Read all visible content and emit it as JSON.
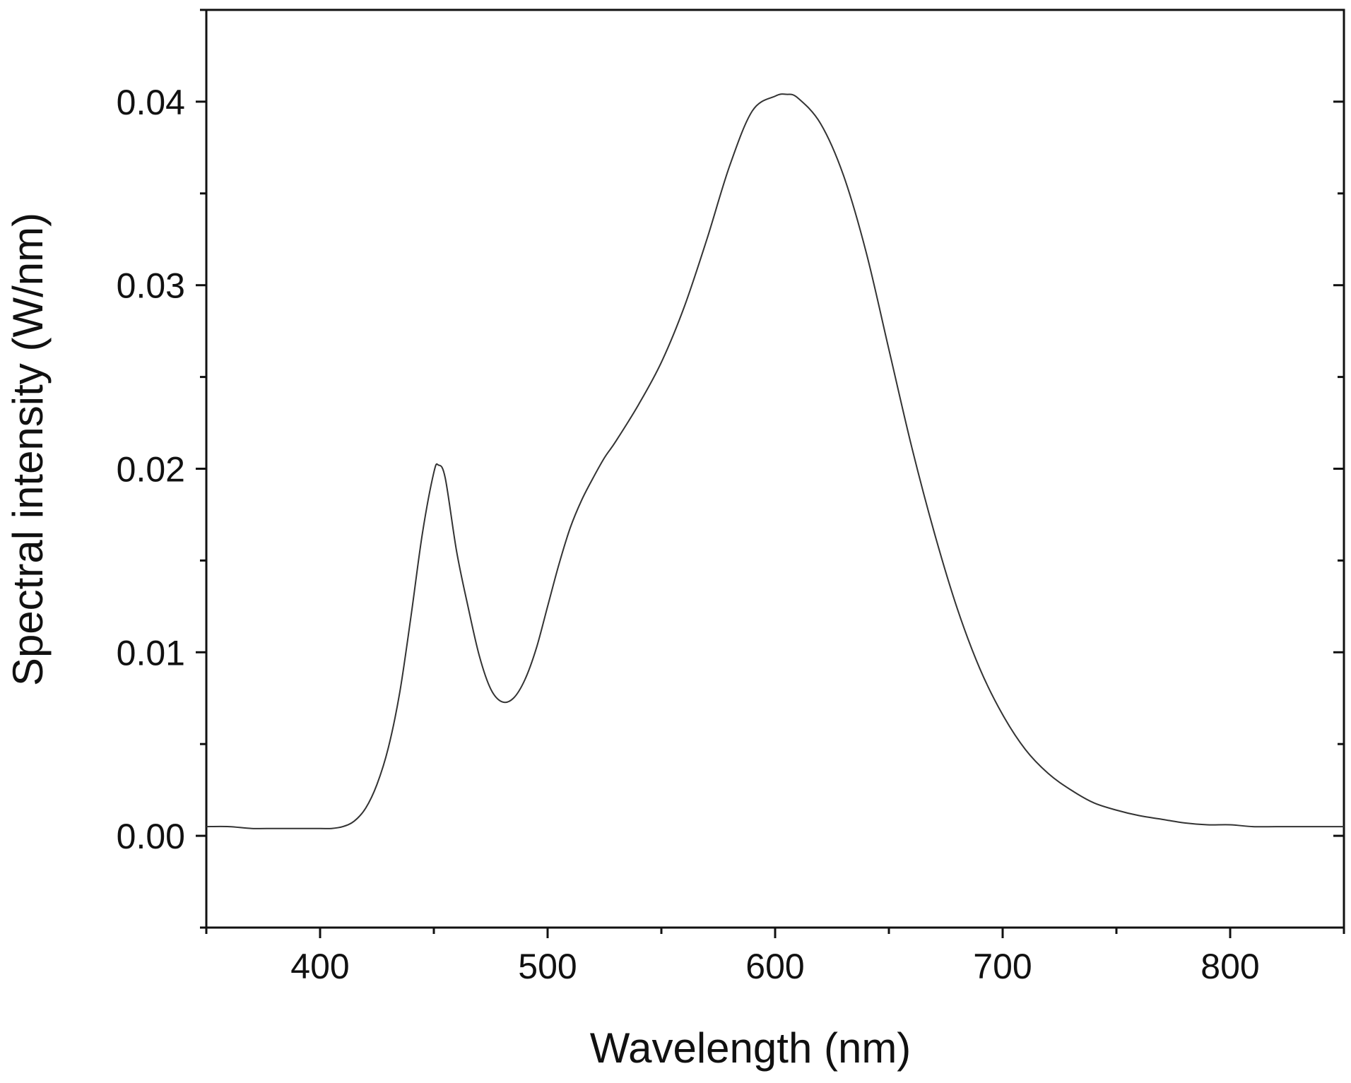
{
  "chart_data": {
    "type": "line",
    "title": "",
    "xlabel": "Wavelength (nm)",
    "ylabel": "Spectral intensity (W/nm)",
    "xlim": [
      350,
      850
    ],
    "ylim": [
      -0.005,
      0.045
    ],
    "x_ticks": [
      {
        "value": 400,
        "label": "400"
      },
      {
        "value": 500,
        "label": "500"
      },
      {
        "value": 600,
        "label": "600"
      },
      {
        "value": 700,
        "label": "700"
      },
      {
        "value": 800,
        "label": "800"
      }
    ],
    "x_minor_ticks": [
      350,
      450,
      550,
      650,
      750,
      850
    ],
    "y_ticks": [
      {
        "value": 0.0,
        "label": "0.00"
      },
      {
        "value": 0.01,
        "label": "0.01"
      },
      {
        "value": 0.02,
        "label": "0.02"
      },
      {
        "value": 0.03,
        "label": "0.03"
      },
      {
        "value": 0.04,
        "label": "0.04"
      }
    ],
    "y_minor_ticks": [
      -0.005,
      0.005,
      0.015,
      0.025,
      0.035,
      0.045
    ],
    "grid": false,
    "box": true,
    "line_color": "#333333",
    "series": [
      {
        "x": [
          350,
          360,
          370,
          380,
          390,
          400,
          405,
          410,
          415,
          420,
          425,
          430,
          435,
          440,
          445,
          450,
          452,
          455,
          460,
          465,
          470,
          475,
          480,
          485,
          490,
          495,
          500,
          505,
          510,
          515,
          520,
          525,
          530,
          540,
          550,
          560,
          570,
          580,
          590,
          600,
          605,
          610,
          620,
          630,
          640,
          650,
          660,
          670,
          680,
          690,
          700,
          710,
          720,
          730,
          740,
          750,
          760,
          770,
          780,
          790,
          800,
          810,
          820,
          830,
          840,
          850
        ],
        "y": [
          0.0005,
          0.0005,
          0.0004,
          0.0004,
          0.0004,
          0.0004,
          0.0004,
          0.0005,
          0.0008,
          0.0015,
          0.0028,
          0.0048,
          0.0078,
          0.012,
          0.0165,
          0.0198,
          0.0202,
          0.0195,
          0.0155,
          0.0125,
          0.0098,
          0.008,
          0.0073,
          0.0075,
          0.0085,
          0.0102,
          0.0125,
          0.0148,
          0.0168,
          0.0183,
          0.0195,
          0.0206,
          0.0215,
          0.0235,
          0.0258,
          0.0288,
          0.0325,
          0.0365,
          0.0395,
          0.0403,
          0.0404,
          0.0402,
          0.0388,
          0.036,
          0.0318,
          0.0265,
          0.0212,
          0.0165,
          0.0124,
          0.0091,
          0.0066,
          0.0047,
          0.0034,
          0.0025,
          0.0018,
          0.0014,
          0.0011,
          0.0009,
          0.0007,
          0.0006,
          0.0006,
          0.0005,
          0.0005,
          0.0005,
          0.0005,
          0.0005
        ]
      }
    ]
  }
}
